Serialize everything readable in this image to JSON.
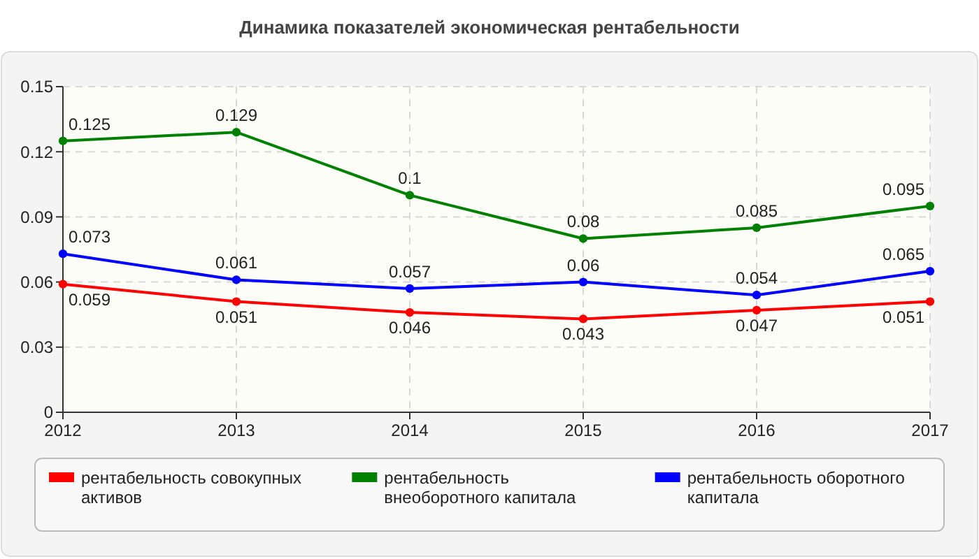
{
  "chart_data": {
    "type": "line",
    "title": "Динамика показателей экономическая рентабельности",
    "categories": [
      "2012",
      "2013",
      "2014",
      "2015",
      "2016",
      "2017"
    ],
    "series": [
      {
        "name": "рентабельность совокупных активов",
        "color": "#ff0000",
        "values": [
          0.059,
          0.051,
          0.046,
          0.043,
          0.047,
          0.051
        ]
      },
      {
        "name": "рентабельность внеоборотного капитала",
        "color": "#008000",
        "values": [
          0.125,
          0.129,
          0.1,
          0.08,
          0.085,
          0.095
        ]
      },
      {
        "name": "рентабельность оборотного капитала",
        "color": "#0000ff",
        "values": [
          0.073,
          0.061,
          0.057,
          0.06,
          0.054,
          0.065
        ]
      }
    ],
    "ylim": [
      0,
      0.15
    ],
    "yticks": [
      0,
      0.03,
      0.06,
      0.09,
      0.12,
      0.15
    ],
    "grid": true,
    "legend": "bottom",
    "marker": "circle",
    "line_style": "solid",
    "data_labels": true
  }
}
